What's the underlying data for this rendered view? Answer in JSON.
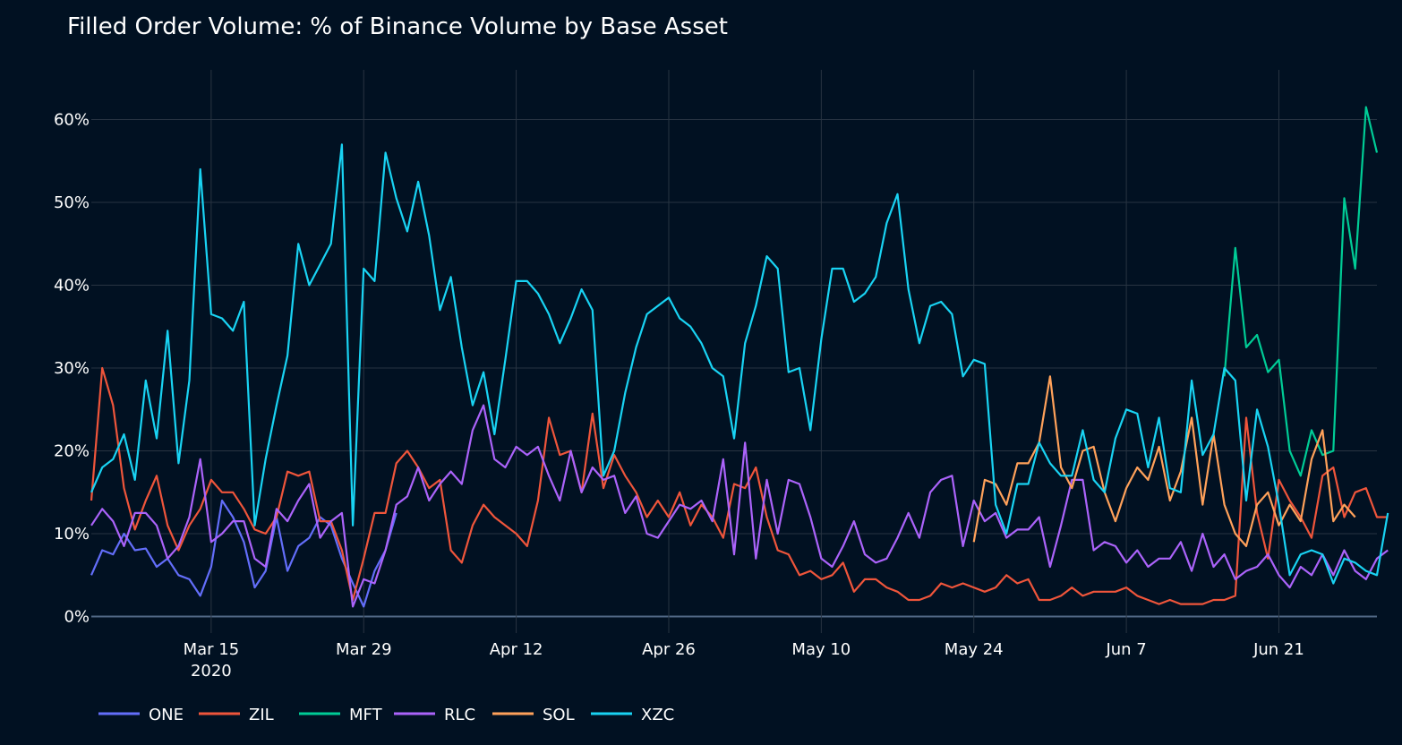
{
  "chart_data": {
    "type": "line",
    "title": "Filled Order Volume: % of Binance Volume by Base Asset",
    "xlabel": "",
    "ylabel": "",
    "y_tick_values": [
      0,
      10,
      20,
      30,
      40,
      50,
      60
    ],
    "y_tick_labels": [
      "0%",
      "10%",
      "20%",
      "30%",
      "40%",
      "50%",
      "60%"
    ],
    "ylim": [
      -2,
      66
    ],
    "x_start_date": "Mar 4, 2020",
    "x_day_range": [
      0,
      118
    ],
    "x_ticks": [
      {
        "day": 11,
        "label": "Mar 15",
        "sublabel": "2020"
      },
      {
        "day": 25,
        "label": "Mar 29",
        "sublabel": ""
      },
      {
        "day": 39,
        "label": "Apr 12",
        "sublabel": ""
      },
      {
        "day": 53,
        "label": "Apr 26",
        "sublabel": ""
      },
      {
        "day": 67,
        "label": "May 10",
        "sublabel": ""
      },
      {
        "day": 81,
        "label": "May 24",
        "sublabel": ""
      },
      {
        "day": 95,
        "label": "Jun 7",
        "sublabel": ""
      },
      {
        "day": 109,
        "label": "Jun 21",
        "sublabel": ""
      }
    ],
    "legend": {
      "placement": "bottom-left",
      "orientation": "horizontal"
    },
    "series": [
      {
        "name": "ONE",
        "color": "#636efa",
        "start": 0,
        "values": [
          5,
          8,
          7.5,
          10,
          8,
          8.2,
          6,
          7,
          5,
          4.5,
          2.5,
          6,
          14,
          12,
          9,
          3.5,
          5.5,
          12,
          5.5,
          8.5,
          9.5,
          12,
          11,
          7,
          4,
          1.2,
          5.5,
          8,
          12.5
        ]
      },
      {
        "name": "ZIL",
        "color": "#ef553b",
        "start": 0,
        "values": [
          14,
          30,
          25.5,
          15.5,
          10.5,
          14,
          17,
          11,
          8,
          11,
          13,
          16.5,
          15,
          15,
          13,
          10.5,
          10,
          12,
          17.5,
          17,
          17.5,
          11.5,
          11.5,
          8,
          2,
          7,
          12.5,
          12.5,
          18.5,
          20,
          18,
          15.5,
          16.5,
          8,
          6.5,
          11,
          13.5,
          12,
          11,
          10,
          8.5,
          14,
          24,
          19.5,
          20,
          15,
          24.5,
          15.5,
          19.5,
          17,
          15,
          12,
          14,
          12,
          15,
          11,
          13.5,
          12,
          9.5,
          16,
          15.5,
          18,
          12,
          8,
          7.5,
          5,
          5.5,
          4.5,
          5,
          6.5,
          3,
          4.5,
          4.5,
          3.5,
          3,
          2,
          2,
          2.5,
          4,
          3.5,
          4,
          3.5,
          3,
          3.5,
          5,
          4,
          4.5,
          2,
          2,
          2.5,
          3.5,
          2.5,
          3,
          3,
          3,
          3.5,
          2.5,
          2,
          1.5,
          2,
          1.5,
          1.5,
          1.5,
          2,
          2,
          2.5,
          24,
          12.5,
          7,
          16.5,
          14,
          12,
          9.5,
          17,
          18,
          12,
          15,
          15.5,
          12,
          12
        ]
      },
      {
        "name": "MFT",
        "color": "#00cc96",
        "start": 104,
        "values": [
          29,
          44.5,
          32.5,
          34,
          29.5,
          31,
          20,
          17,
          22.5,
          19.5,
          20,
          50.5,
          42,
          61.5,
          56
        ]
      },
      {
        "name": "RLC",
        "color": "#ab63fa",
        "start": 0,
        "values": [
          11,
          13,
          11.5,
          8.5,
          12.5,
          12.5,
          11,
          7,
          8.5,
          12,
          19,
          9,
          10,
          11.5,
          11.5,
          7,
          6,
          13,
          11.5,
          14,
          16,
          9.5,
          11.5,
          12.5,
          1.2,
          4.5,
          4,
          8,
          13.5,
          14.5,
          18,
          14,
          16,
          17.5,
          16,
          22.5,
          25.5,
          19,
          18,
          20.5,
          19.5,
          20.5,
          17,
          14,
          20,
          15,
          18,
          16.5,
          17,
          12.5,
          14.5,
          10,
          9.5,
          11.5,
          13.5,
          13,
          14,
          11.5,
          19,
          7.5,
          21,
          7,
          16.5,
          10,
          16.5,
          16,
          12,
          7,
          6,
          8.5,
          11.5,
          7.5,
          6.5,
          7,
          9.5,
          12.5,
          9.5,
          15,
          16.5,
          17,
          8.5,
          14,
          11.5,
          12.5,
          9.5,
          10.5,
          10.5,
          12,
          6,
          11,
          16.5,
          16.5,
          8,
          9,
          8.5,
          6.5,
          8,
          6,
          7,
          7,
          9,
          5.5,
          10,
          6,
          7.5,
          4.5,
          5.5,
          6,
          7.5,
          5,
          3.5,
          6,
          5,
          7.5,
          5,
          8,
          5.5,
          4.5,
          7,
          8
        ]
      },
      {
        "name": "SOL",
        "color": "#ffa15a",
        "start": 81,
        "values": [
          9,
          16.5,
          16,
          13.5,
          18.5,
          18.5,
          21,
          29,
          18,
          15.5,
          20,
          20.5,
          15,
          11.5,
          15.5,
          18,
          16.5,
          20.5,
          14,
          17.5,
          24,
          13.5,
          22,
          13.5,
          10,
          8.5,
          13.5,
          15,
          11,
          13.5,
          11.5,
          19,
          22.5,
          11.5,
          13.5,
          12
        ]
      },
      {
        "name": "XZC",
        "color": "#19d3f3",
        "start": 0,
        "values": [
          15,
          18,
          19,
          22,
          16.5,
          28.5,
          21.5,
          34.5,
          18.5,
          28.5,
          54,
          36.5,
          36,
          34.5,
          38,
          11,
          19,
          25.5,
          31.5,
          45,
          40,
          42.5,
          45,
          57,
          11,
          42,
          40.5,
          56,
          50.5,
          46.5,
          52.5,
          46,
          37,
          41,
          32.5,
          25.5,
          29.5,
          22,
          31,
          40.5,
          40.5,
          39,
          36.5,
          33,
          36,
          39.5,
          37,
          17,
          20,
          27,
          32.5,
          36.5,
          37.5,
          38.5,
          36,
          35,
          33,
          30,
          29,
          21.5,
          33,
          37.5,
          43.5,
          42,
          29.5,
          30,
          22.5,
          33.5,
          42,
          42,
          38,
          39,
          41,
          47.5,
          51,
          39.5,
          33,
          37.5,
          38,
          36.5,
          29,
          31,
          30.5,
          13.5,
          10,
          16,
          16,
          21,
          18.5,
          17,
          17,
          22.5,
          16.5,
          15,
          21.5,
          25,
          24.5,
          18,
          24,
          15.5,
          15,
          28.5,
          19.5,
          22,
          30,
          28.5,
          14,
          25,
          20.5,
          13.5,
          5,
          7.5,
          8,
          7.5,
          4,
          7,
          6.5,
          5.5,
          5,
          12.5
        ]
      }
    ]
  }
}
